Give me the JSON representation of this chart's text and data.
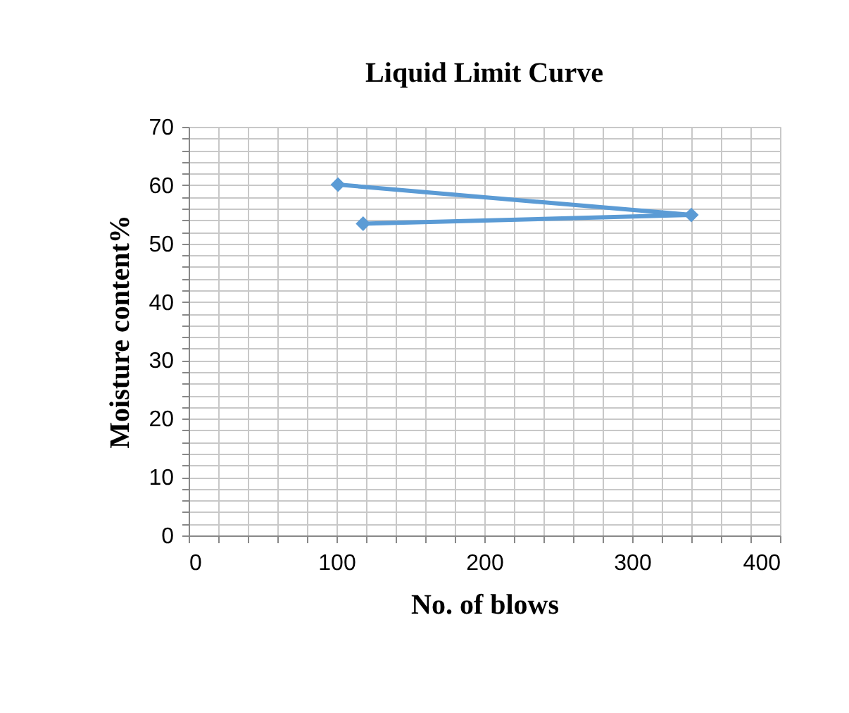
{
  "chart_data": {
    "type": "line",
    "title": "Liquid Limit Curve",
    "xlabel": "No. of blows",
    "ylabel": "Moisture content%",
    "series": [
      {
        "color": "#5b9bd5",
        "x": [
          101,
          340,
          118
        ],
        "values": [
          60.1,
          54.9,
          53.4
        ]
      }
    ],
    "xlim": [
      0,
      400
    ],
    "ylim": [
      0,
      70
    ],
    "xticks": [
      0,
      {
        "value": 20,
        "label": null
      },
      {
        "value": 40,
        "label": null
      },
      {
        "value": 60,
        "label": null
      },
      {
        "value": 80,
        "label": null
      },
      100,
      {
        "value": 120,
        "label": null
      },
      {
        "value": 140,
        "label": null
      },
      {
        "value": 160,
        "label": null
      },
      {
        "value": 180,
        "label": null
      },
      200,
      {
        "value": 220,
        "label": null
      },
      {
        "value": 240,
        "label": null
      },
      {
        "value": 260,
        "label": null
      },
      {
        "value": 280,
        "label": null
      },
      300,
      {
        "value": 320,
        "label": null
      },
      {
        "value": 340,
        "label": null
      },
      {
        "value": 360,
        "label": null
      },
      {
        "value": 380,
        "label": null
      },
      400
    ],
    "yticks": [
      0,
      {
        "value": 2,
        "label": null
      },
      {
        "value": 4,
        "label": null
      },
      {
        "value": 6,
        "label": null
      },
      {
        "value": 8,
        "label": null
      },
      10,
      {
        "value": 12,
        "label": null
      },
      {
        "value": 14,
        "label": null
      },
      {
        "value": 16,
        "label": null
      },
      {
        "value": 18,
        "label": null
      },
      20,
      {
        "value": 22,
        "label": null
      },
      {
        "value": 24,
        "label": null
      },
      {
        "value": 26,
        "label": null
      },
      {
        "value": 28,
        "label": null
      },
      30,
      {
        "value": 32,
        "label": null
      },
      {
        "value": 34,
        "label": null
      },
      {
        "value": 36,
        "label": null
      },
      {
        "value": 38,
        "label": null
      },
      40,
      {
        "value": 42,
        "label": null
      },
      {
        "value": 44,
        "label": null
      },
      {
        "value": 46,
        "label": null
      },
      {
        "value": 48,
        "label": null
      },
      50,
      {
        "value": 52,
        "label": null
      },
      {
        "value": 54,
        "label": null
      },
      {
        "value": 56,
        "label": null
      },
      {
        "value": 58,
        "label": null
      },
      60,
      {
        "value": 62,
        "label": null
      },
      {
        "value": 64,
        "label": null
      },
      {
        "value": 66,
        "label": null
      },
      {
        "value": 68,
        "label": null
      },
      70
    ],
    "grid": true,
    "marker": "diamond",
    "line_style": "solid"
  }
}
